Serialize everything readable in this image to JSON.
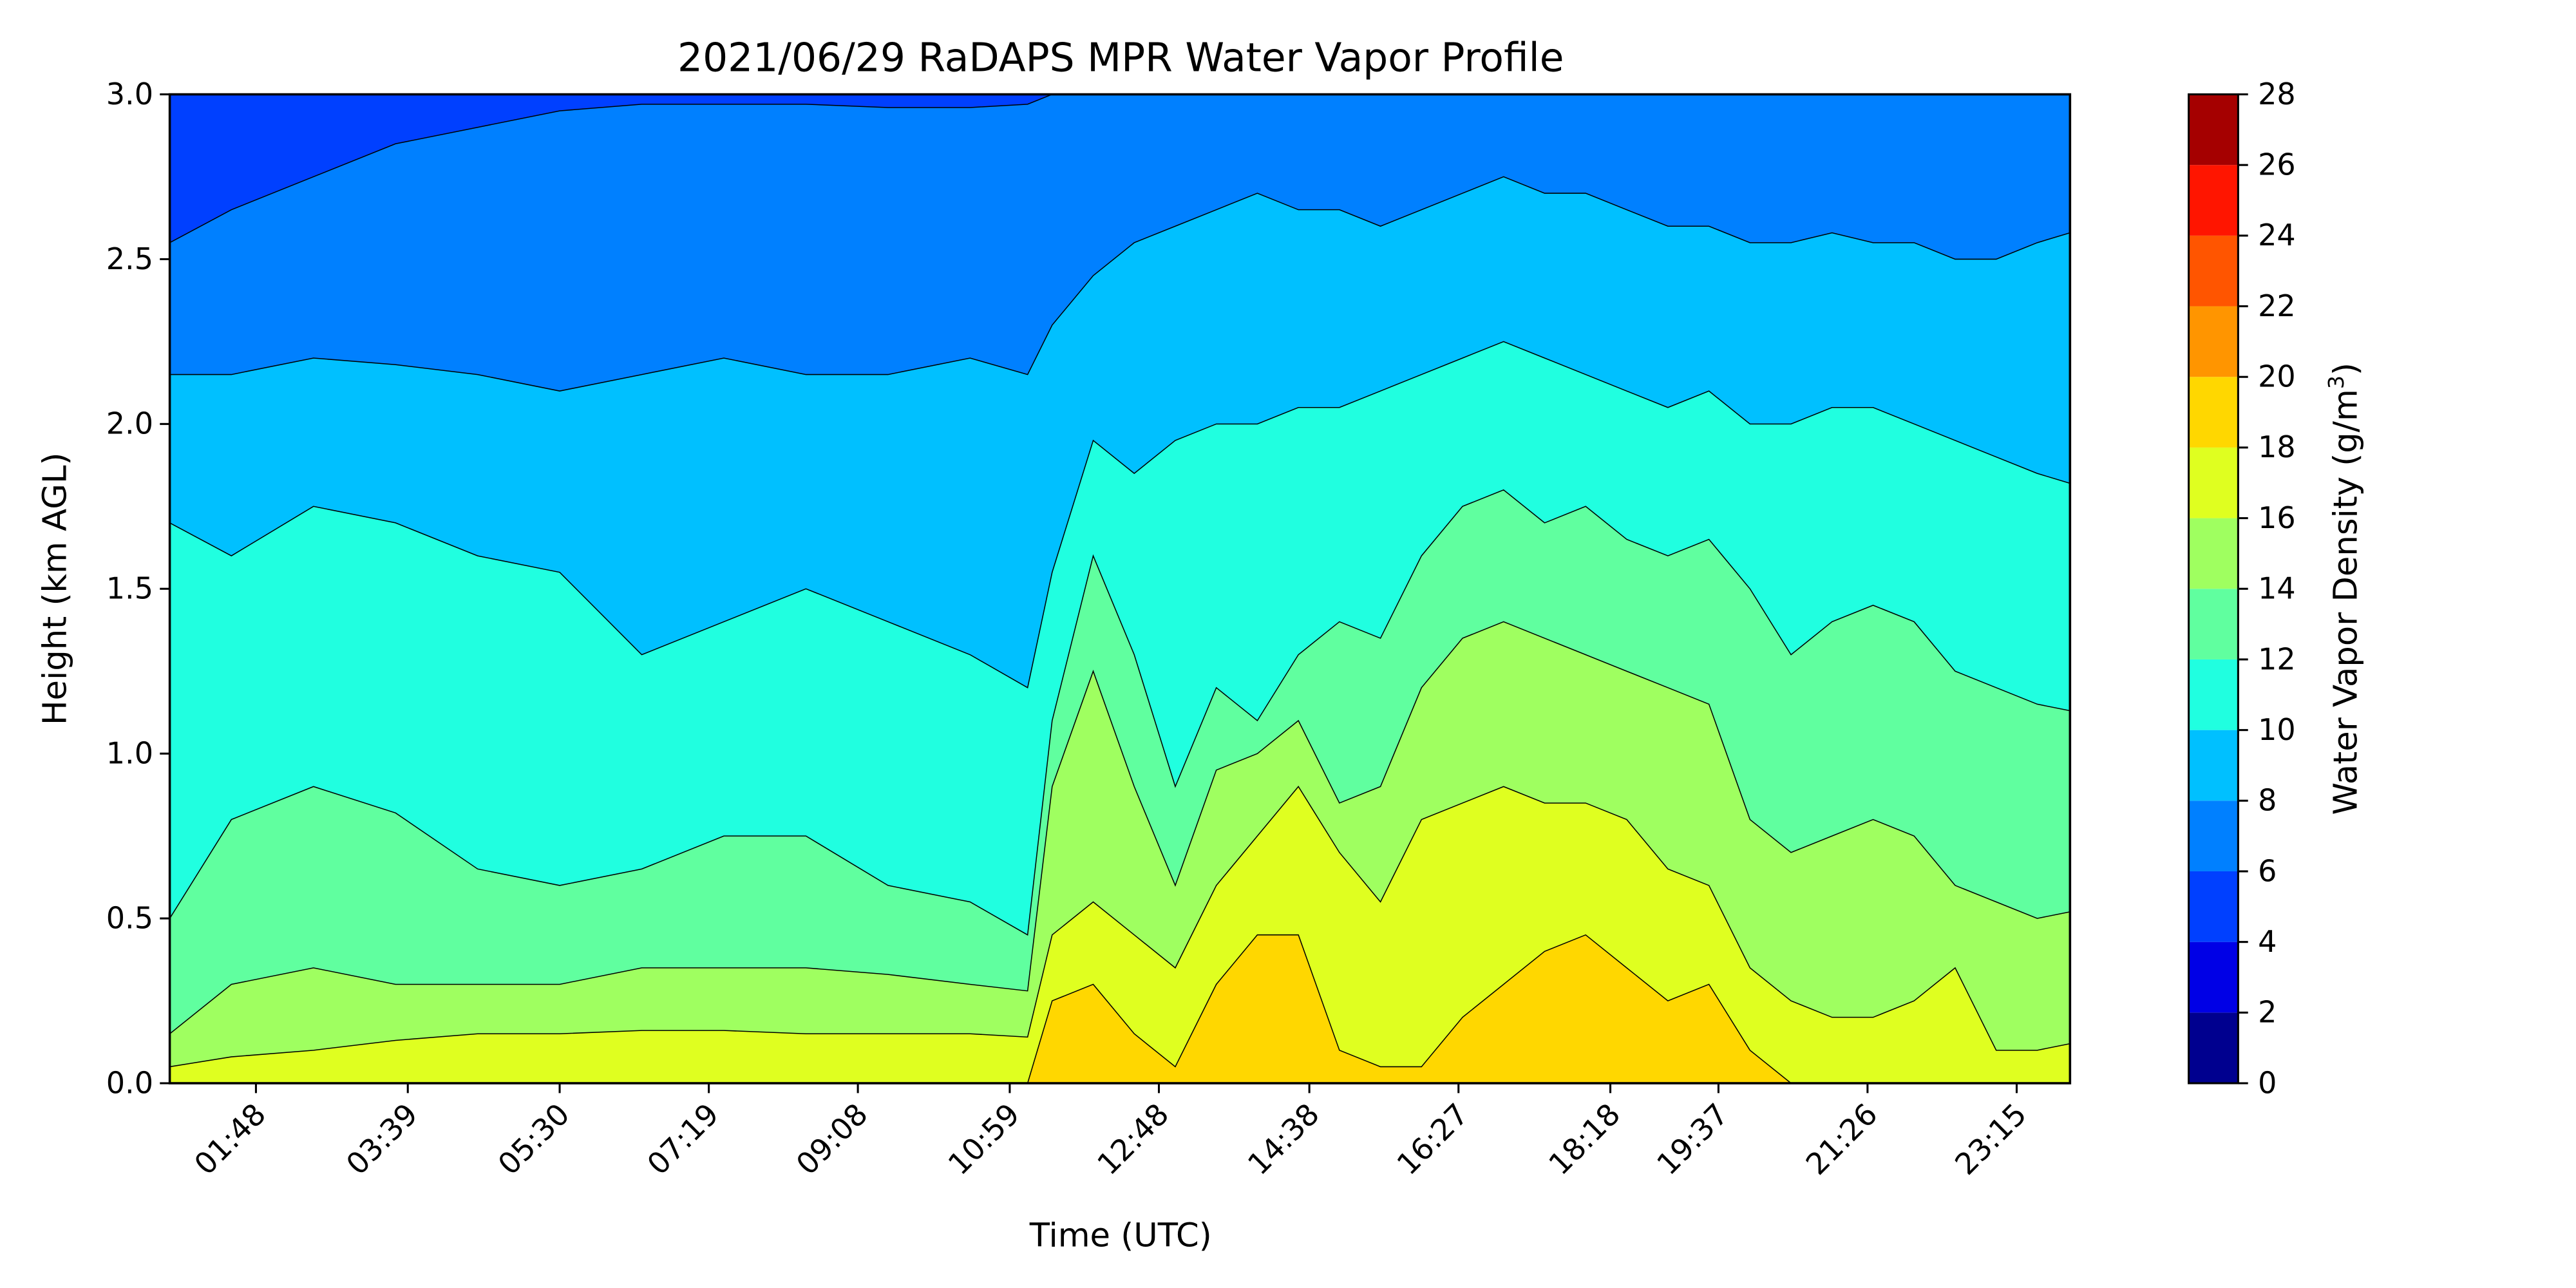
{
  "chart_data": {
    "type": "heatmap",
    "subtype": "filled-contour",
    "title": "2021/06/29 RaDAPS MPR Water Vapor Profile",
    "xlabel": "Time (UTC)",
    "ylabel": "Height (km AGL)",
    "xlim_hours": [
      0.75,
      23.9
    ],
    "ylim": [
      0,
      3.0
    ],
    "y_ticks": [
      {
        "value": 0.0,
        "label": "0.0"
      },
      {
        "value": 0.5,
        "label": "0.5"
      },
      {
        "value": 1.0,
        "label": "1.0"
      },
      {
        "value": 1.5,
        "label": "1.5"
      },
      {
        "value": 2.0,
        "label": "2.0"
      },
      {
        "value": 2.5,
        "label": "2.5"
      },
      {
        "value": 3.0,
        "label": "3.0"
      }
    ],
    "x_ticks": [
      {
        "value": 1.8,
        "label": "01:48"
      },
      {
        "value": 3.65,
        "label": "03:39"
      },
      {
        "value": 5.5,
        "label": "05:30"
      },
      {
        "value": 7.317,
        "label": "07:19"
      },
      {
        "value": 9.133,
        "label": "09:08"
      },
      {
        "value": 10.983,
        "label": "10:59"
      },
      {
        "value": 12.8,
        "label": "12:48"
      },
      {
        "value": 14.633,
        "label": "14:38"
      },
      {
        "value": 16.45,
        "label": "16:27"
      },
      {
        "value": 18.3,
        "label": "18:18"
      },
      {
        "value": 19.617,
        "label": "19:37"
      },
      {
        "value": 21.433,
        "label": "21:26"
      },
      {
        "value": 23.25,
        "label": "23:15"
      }
    ],
    "colorbar": {
      "label_main": "Water Vapor Density (g/m",
      "label_sup": "3",
      "label_close": ")",
      "levels": [
        0,
        2,
        4,
        6,
        8,
        10,
        12,
        14,
        16,
        18,
        20,
        22,
        24,
        26,
        28
      ],
      "tick_labels": [
        "0",
        "2",
        "4",
        "6",
        "8",
        "10",
        "12",
        "14",
        "16",
        "18",
        "20",
        "22",
        "24",
        "26",
        "28"
      ],
      "colors": [
        "#00008f",
        "#0000e6",
        "#0040ff",
        "#0080ff",
        "#00c0ff",
        "#20ffe0",
        "#60ff9f",
        "#9fff60",
        "#dfff20",
        "#ffd700",
        "#ff9500",
        "#ff5500",
        "#ff1500",
        "#a50000"
      ]
    },
    "time_hours": [
      0.75,
      1.5,
      2.5,
      3.5,
      4.5,
      5.5,
      6.5,
      7.5,
      8.5,
      9.5,
      10.5,
      11.2,
      11.5,
      12.0,
      12.5,
      13.0,
      13.5,
      14.0,
      14.5,
      15.0,
      15.5,
      16.0,
      16.5,
      17.0,
      17.5,
      18.0,
      18.5,
      19.0,
      19.5,
      20.0,
      20.5,
      21.0,
      21.5,
      22.0,
      22.5,
      23.0,
      23.5,
      23.9
    ],
    "contour_heights_km": [
      {
        "level": 6,
        "z": [
          2.55,
          2.65,
          2.75,
          2.85,
          2.9,
          2.95,
          2.97,
          2.97,
          2.97,
          2.96,
          2.96,
          2.97,
          3.0,
          3.0,
          3.0,
          3.0,
          3.0,
          3.0,
          3.0,
          3.0,
          3.0,
          3.0,
          3.0,
          3.0,
          3.0,
          3.0,
          3.0,
          3.0,
          3.0,
          3.0,
          3.0,
          3.0,
          3.0,
          3.0,
          3.0,
          3.0,
          3.0,
          3.0
        ]
      },
      {
        "level": 8,
        "z": [
          2.15,
          2.15,
          2.2,
          2.18,
          2.15,
          2.1,
          2.15,
          2.2,
          2.15,
          2.15,
          2.2,
          2.15,
          2.3,
          2.45,
          2.55,
          2.6,
          2.65,
          2.7,
          2.65,
          2.65,
          2.6,
          2.65,
          2.7,
          2.75,
          2.7,
          2.7,
          2.65,
          2.6,
          2.6,
          2.55,
          2.55,
          2.58,
          2.55,
          2.55,
          2.5,
          2.5,
          2.55,
          2.58
        ]
      },
      {
        "level": 10,
        "z": [
          1.7,
          1.6,
          1.75,
          1.7,
          1.6,
          1.55,
          1.3,
          1.4,
          1.5,
          1.4,
          1.3,
          1.2,
          1.55,
          1.95,
          1.85,
          1.95,
          2.0,
          2.0,
          2.05,
          2.05,
          2.1,
          2.15,
          2.2,
          2.25,
          2.2,
          2.15,
          2.1,
          2.05,
          2.1,
          2.0,
          2.0,
          2.05,
          2.05,
          2.0,
          1.95,
          1.9,
          1.85,
          1.82
        ]
      },
      {
        "level": 12,
        "z": [
          0.5,
          0.8,
          0.9,
          0.82,
          0.65,
          0.6,
          0.65,
          0.75,
          0.75,
          0.6,
          0.55,
          0.45,
          1.1,
          1.6,
          1.3,
          0.9,
          1.2,
          1.1,
          1.3,
          1.4,
          1.35,
          1.6,
          1.75,
          1.8,
          1.7,
          1.75,
          1.65,
          1.6,
          1.65,
          1.5,
          1.3,
          1.4,
          1.45,
          1.4,
          1.25,
          1.2,
          1.15,
          1.13
        ]
      },
      {
        "level": 14,
        "z": [
          0.15,
          0.3,
          0.35,
          0.3,
          0.3,
          0.3,
          0.35,
          0.35,
          0.35,
          0.33,
          0.3,
          0.28,
          0.9,
          1.25,
          0.9,
          0.6,
          0.95,
          1.0,
          1.1,
          0.85,
          0.9,
          1.2,
          1.35,
          1.4,
          1.35,
          1.3,
          1.25,
          1.2,
          1.15,
          0.8,
          0.7,
          0.75,
          0.8,
          0.75,
          0.6,
          0.55,
          0.5,
          0.52
        ]
      },
      {
        "level": 16,
        "z": [
          0.05,
          0.08,
          0.1,
          0.13,
          0.15,
          0.15,
          0.16,
          0.16,
          0.15,
          0.15,
          0.15,
          0.14,
          0.45,
          0.55,
          0.45,
          0.35,
          0.6,
          0.75,
          0.9,
          0.7,
          0.55,
          0.8,
          0.85,
          0.9,
          0.85,
          0.85,
          0.8,
          0.65,
          0.6,
          0.35,
          0.25,
          0.2,
          0.2,
          0.25,
          0.35,
          0.1,
          0.1,
          0.12
        ]
      },
      {
        "level": 18,
        "z": [
          0,
          0,
          0,
          0,
          0,
          0,
          0,
          0,
          0,
          0,
          0,
          0,
          0.25,
          0.3,
          0.15,
          0.05,
          0.3,
          0.45,
          0.45,
          0.1,
          0.05,
          0.05,
          0.2,
          0.3,
          0.4,
          0.45,
          0.35,
          0.25,
          0.3,
          0.1,
          0,
          0,
          0,
          0,
          0,
          0,
          0,
          0
        ]
      }
    ]
  }
}
